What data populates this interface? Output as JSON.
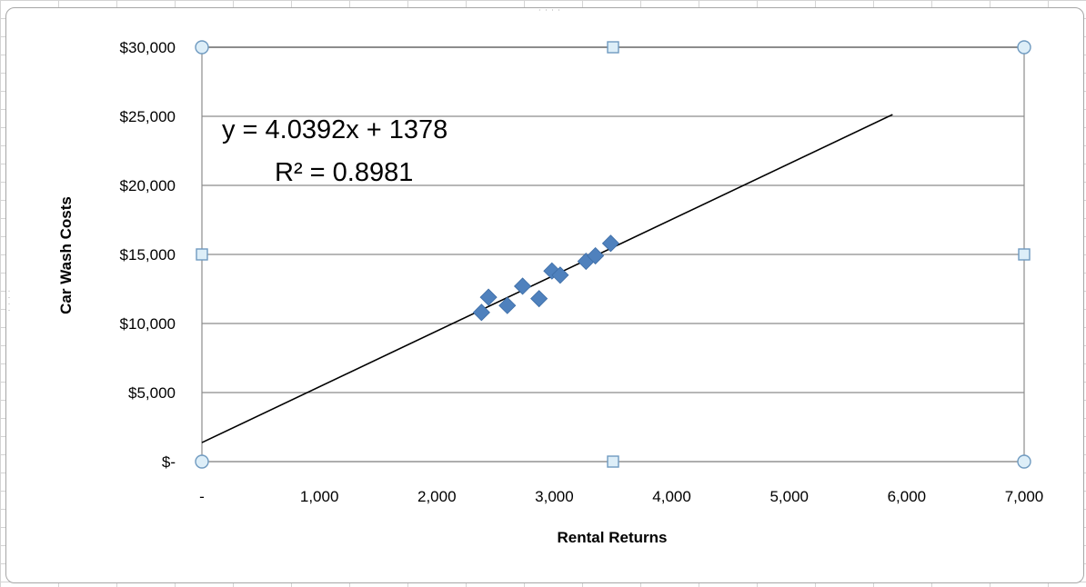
{
  "chart_data": {
    "type": "scatter",
    "title": "",
    "xlabel": "Rental Returns",
    "ylabel": "Car Wash  Costs",
    "xlim": [
      0,
      7000
    ],
    "ylim": [
      0,
      30000
    ],
    "x_ticks": [
      0,
      1000,
      2000,
      3000,
      4000,
      5000,
      6000,
      7000
    ],
    "x_tick_labels": [
      "-",
      "1,000",
      "2,000",
      "3,000",
      "4,000",
      "5,000",
      "6,000",
      "7,000"
    ],
    "y_ticks": [
      0,
      5000,
      10000,
      15000,
      20000,
      25000,
      30000
    ],
    "y_tick_labels": [
      "$-",
      "$5,000",
      "$10,000",
      "$15,000",
      "$20,000",
      "$25,000",
      "$30,000"
    ],
    "grid": "horizontal major",
    "legend": "none",
    "marker": "diamond",
    "series": [
      {
        "color": "#4f81bd",
        "points": [
          {
            "x": 2380,
            "y": 10800
          },
          {
            "x": 2440,
            "y": 11900
          },
          {
            "x": 2600,
            "y": 11300
          },
          {
            "x": 2730,
            "y": 12700
          },
          {
            "x": 2870,
            "y": 11800
          },
          {
            "x": 2980,
            "y": 13800
          },
          {
            "x": 3050,
            "y": 13500
          },
          {
            "x": 3270,
            "y": 14500
          },
          {
            "x": 3350,
            "y": 14900
          },
          {
            "x": 3480,
            "y": 15800
          }
        ]
      }
    ],
    "trendline": {
      "slope": 4.0392,
      "intercept": 1378,
      "x_range": [
        0,
        5880
      ],
      "color": "#000000",
      "equation_label": "y = 4.0392x + 1378",
      "r2_label": "R² = 0.8981"
    },
    "colors": {
      "grid": "#8c8c8c",
      "selection_handle_fill": "#ddeef8",
      "selection_handle_stroke": "#6f9ac0",
      "plot_border": "#8c8c8c"
    }
  }
}
